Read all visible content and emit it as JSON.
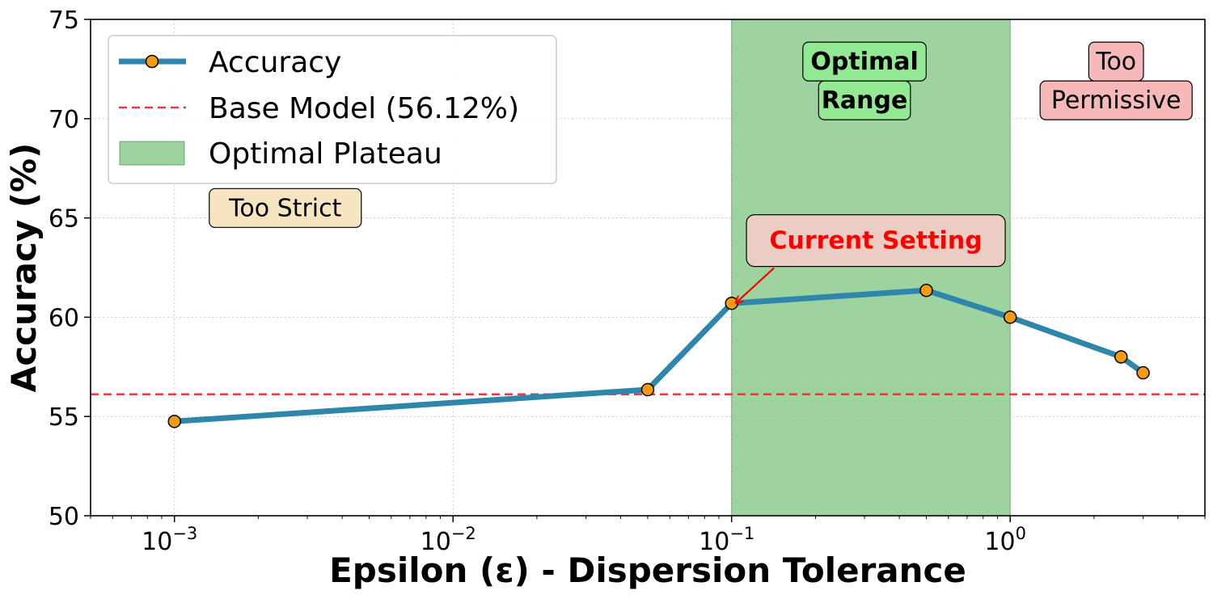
{
  "chart_data": {
    "type": "line",
    "xlabel": "Epsilon (ε) - Dispersion Tolerance",
    "ylabel": "Accuracy (%)",
    "xscale": "log",
    "xlim": [
      0.0005,
      5
    ],
    "ylim": [
      50,
      75
    ],
    "grid": true,
    "x_ticks": [
      {
        "value": 0.001,
        "mantissa": "10",
        "exponent": "−3"
      },
      {
        "value": 0.01,
        "mantissa": "10",
        "exponent": "−2"
      },
      {
        "value": 0.1,
        "mantissa": "10",
        "exponent": "−1"
      },
      {
        "value": 1,
        "mantissa": "10",
        "exponent": "0"
      }
    ],
    "y_ticks": [
      50,
      55,
      60,
      65,
      70,
      75
    ],
    "legend_position": "top-left",
    "series": [
      {
        "name": "Accuracy",
        "color": "#2e86ab",
        "marker_color": "#f39c12",
        "x": [
          0.001,
          0.05,
          0.1,
          0.5,
          1.0,
          2.5,
          3.0
        ],
        "y": [
          54.75,
          56.35,
          60.7,
          61.35,
          60.0,
          58.0,
          57.2
        ]
      }
    ],
    "baseline": {
      "name": "Base Model (56.12%)",
      "y": 56.12,
      "color": "#e63946"
    },
    "plateau": {
      "name": "Optimal Plateau",
      "x_start": 0.1,
      "x_end": 1.0,
      "color": "#4caf50"
    },
    "annotations": [
      {
        "lines": [
          "Too Strict"
        ],
        "x": 0.0025,
        "y": 65.5,
        "bg": "#f5deb3",
        "bold": false,
        "color": "#000000"
      },
      {
        "lines": [
          "Optimal",
          "Range"
        ],
        "x": 0.3,
        "y": 71.9,
        "bg": "#90ee90",
        "bold": true,
        "color": "#000000"
      },
      {
        "lines": [
          "Too",
          "Permissive"
        ],
        "x": 2.4,
        "y": 71.9,
        "bg": "#f4a6a6",
        "bold": false,
        "color": "#000000"
      }
    ],
    "arrow_annotation": {
      "text": "Current Setting",
      "text_x": 0.3,
      "text_y": 63.9,
      "target_x": 0.1,
      "target_y": 60.7,
      "color": "#ff0000",
      "bg": "#ffcccc"
    }
  }
}
